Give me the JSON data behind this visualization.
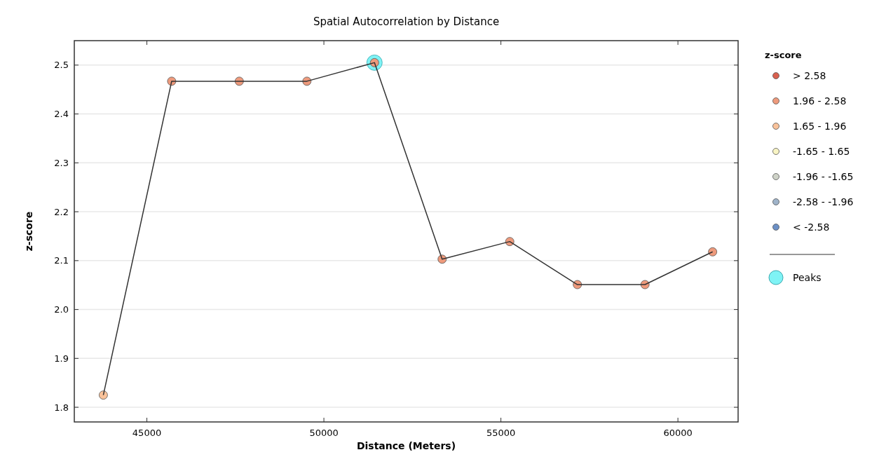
{
  "chart_data": {
    "type": "scatter",
    "title": "Spatial Autocorrelation by Distance",
    "xlabel": "Distance (Meters)",
    "ylabel": "z-score",
    "legend_title": "z-score",
    "xlim": [
      42950,
      61700
    ],
    "xticks": [
      45000,
      50000,
      55000,
      60000
    ],
    "ylim": [
      1.77,
      2.55
    ],
    "yticks": [
      1.8,
      1.9,
      {
        "value": 2.0,
        "label": "2.0"
      },
      2.1,
      2.2,
      2.3,
      2.4,
      2.5
    ],
    "x": [
      43770,
      45700,
      47610,
      49520,
      51430,
      53340,
      55250,
      57160,
      59070,
      60980
    ],
    "grid": "y",
    "legend": "right",
    "marker": "circle",
    "series": [
      {
        "type": "line",
        "color": "#333333",
        "line_style": "solid",
        "marker": "none",
        "values": [
          1.825,
          2.467,
          2.467,
          2.467,
          2.505,
          2.103,
          2.139,
          2.051,
          2.051,
          2.118
        ]
      },
      {
        "name": "Peaks",
        "type": "scatter",
        "color": "#7ff3f5",
        "values": [
          null,
          null,
          null,
          null,
          2.505,
          null,
          null,
          null,
          null,
          null
        ]
      },
      {
        "name": "> 2.58",
        "color": "#d9604f",
        "values": [
          null,
          null,
          null,
          null,
          null,
          null,
          null,
          null,
          null,
          null
        ]
      },
      {
        "name": "1.96 - 2.58",
        "color": "#ee9a7c",
        "values": [
          null,
          2.467,
          2.467,
          2.467,
          2.505,
          2.103,
          2.139,
          2.051,
          2.051,
          2.118
        ]
      },
      {
        "name": "1.65 - 1.96",
        "color": "#f9c29a",
        "values": [
          1.825,
          null,
          null,
          null,
          null,
          null,
          null,
          null,
          null,
          null
        ]
      },
      {
        "name": "-1.65 - 1.65",
        "color": "#f8f4c4",
        "values": [
          null,
          null,
          null,
          null,
          null,
          null,
          null,
          null,
          null,
          null
        ]
      },
      {
        "name": "-1.96 - -1.65",
        "color": "#cfd3c8",
        "values": [
          null,
          null,
          null,
          null,
          null,
          null,
          null,
          null,
          null,
          null
        ]
      },
      {
        "name": "-2.58 - -1.96",
        "color": "#9fb3c9",
        "values": [
          null,
          null,
          null,
          null,
          null,
          null,
          null,
          null,
          null,
          null
        ]
      },
      {
        "name": "< -2.58",
        "color": "#6c90c6",
        "values": [
          null,
          null,
          null,
          null,
          null,
          null,
          null,
          null,
          null,
          null
        ]
      }
    ]
  }
}
